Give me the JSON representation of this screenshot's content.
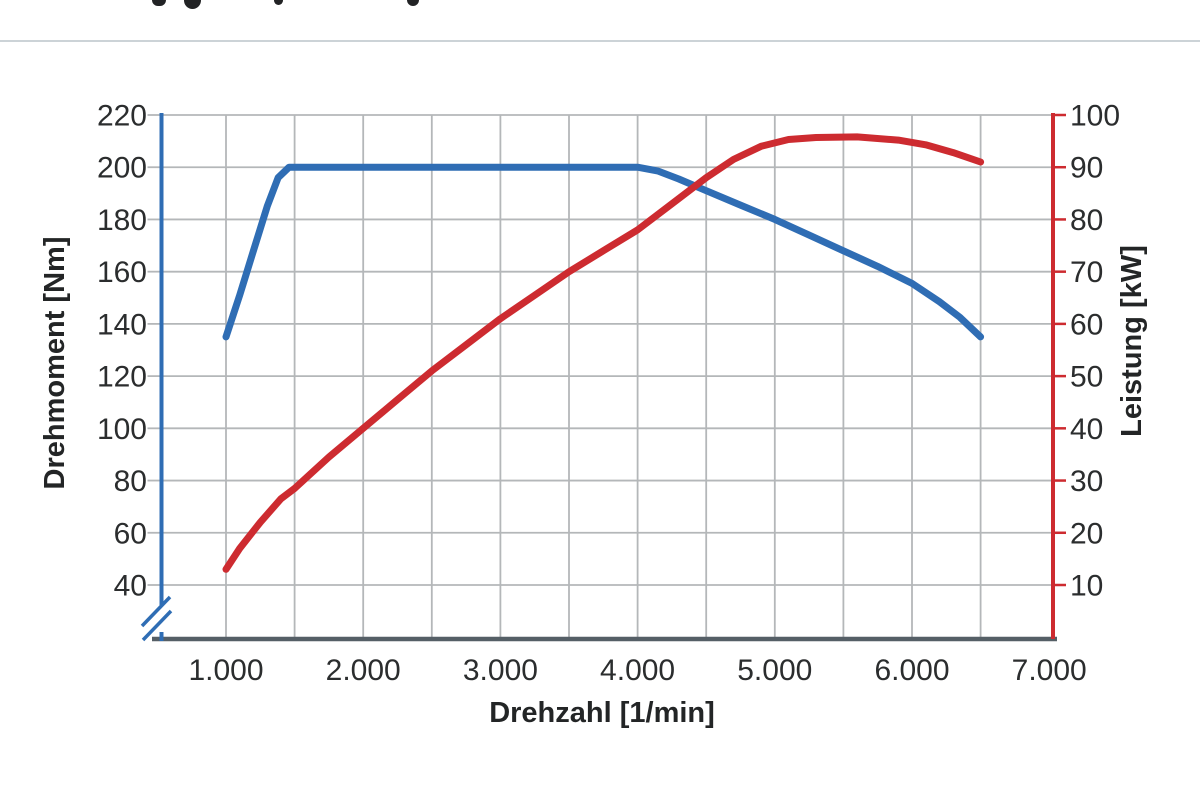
{
  "chart_data": {
    "type": "line",
    "title": "",
    "grid": true,
    "legend": "none",
    "x_axis": {
      "label": "Drehzahl [1/min]",
      "tick_values": [
        1000,
        2000,
        3000,
        4000,
        5000,
        6000,
        7000
      ],
      "tick_labels": [
        "1.000",
        "2.000",
        "3.000",
        "4.000",
        "5.000",
        "6.000",
        "7.000"
      ],
      "gridline_step": 500,
      "range": [
        550,
        7000
      ]
    },
    "y_axis_left": {
      "label": "Drehmoment [Nm]",
      "ticks": [
        220,
        200,
        180,
        160,
        140,
        120,
        100,
        80,
        60,
        40
      ],
      "range_shown": [
        40,
        220
      ],
      "axis_break_below_min": true,
      "color": "#2f6db4"
    },
    "y_axis_right": {
      "label": "Leistung [kW]",
      "ticks": [
        100,
        90,
        80,
        70,
        60,
        50,
        40,
        30,
        20,
        10
      ],
      "range_shown": [
        10,
        100
      ],
      "color": "#cd2b30"
    },
    "series": [
      {
        "name": "Drehmoment",
        "unit": "Nm",
        "axis": "left",
        "color": "#2f6db4",
        "points": [
          [
            1000,
            135
          ],
          [
            1100,
            151
          ],
          [
            1200,
            168
          ],
          [
            1300,
            185
          ],
          [
            1380,
            196
          ],
          [
            1460,
            200
          ],
          [
            2000,
            200
          ],
          [
            2500,
            200
          ],
          [
            3000,
            200
          ],
          [
            3500,
            200
          ],
          [
            4000,
            200
          ],
          [
            4150,
            198.5
          ],
          [
            4300,
            195.5
          ],
          [
            4500,
            191
          ],
          [
            4750,
            185.5
          ],
          [
            5000,
            180
          ],
          [
            5250,
            174
          ],
          [
            5500,
            168
          ],
          [
            5750,
            162
          ],
          [
            6000,
            155.5
          ],
          [
            6200,
            148.5
          ],
          [
            6350,
            142.5
          ],
          [
            6500,
            135
          ]
        ]
      },
      {
        "name": "Leistung",
        "unit": "kW",
        "axis": "right",
        "color": "#cd2b30",
        "points": [
          [
            1000,
            13
          ],
          [
            1100,
            17
          ],
          [
            1250,
            22
          ],
          [
            1400,
            26.5
          ],
          [
            1500,
            28.5
          ],
          [
            1750,
            34.5
          ],
          [
            2000,
            40
          ],
          [
            2250,
            45.5
          ],
          [
            2500,
            51
          ],
          [
            2750,
            56
          ],
          [
            3000,
            61
          ],
          [
            3250,
            65.5
          ],
          [
            3500,
            70
          ],
          [
            3750,
            74
          ],
          [
            4000,
            78
          ],
          [
            4250,
            83
          ],
          [
            4500,
            88
          ],
          [
            4700,
            91.5
          ],
          [
            4900,
            94
          ],
          [
            5100,
            95.3
          ],
          [
            5300,
            95.7
          ],
          [
            5600,
            95.8
          ],
          [
            5900,
            95.2
          ],
          [
            6100,
            94.3
          ],
          [
            6300,
            92.8
          ],
          [
            6500,
            91
          ]
        ]
      }
    ]
  }
}
